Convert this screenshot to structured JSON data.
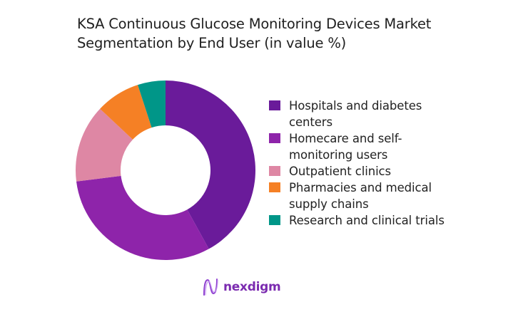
{
  "chart_data": {
    "type": "pie",
    "subtype": "donut",
    "title": "KSA Continuous Glucose Monitoring Devices Market Segmentation by End User (in value %)",
    "title_lines": [
      "KSA Continuous Glucose Monitoring Devices Market",
      "Segmentation by End User (in value %)"
    ],
    "categories": [
      "Hospitals and diabetes centers",
      "Homecare and self-monitoring users",
      "Outpatient clinics",
      "Pharmacies and medical supply chains",
      "Research and clinical trials"
    ],
    "values": [
      42,
      31,
      14,
      8,
      5
    ],
    "colors": [
      "#6a1b9a",
      "#8e24aa",
      "#de87a4",
      "#f58025",
      "#009688"
    ],
    "legend_position": "right",
    "start_angle": "12 o'clock",
    "direction": "clockwise",
    "data_labels": false
  },
  "legend": {
    "items": [
      {
        "label": "Hospitals and diabetes centers",
        "color": "#6a1b9a"
      },
      {
        "label": "Homecare and self-monitoring users",
        "color": "#8e24aa"
      },
      {
        "label": "Outpatient clinics",
        "color": "#de87a4"
      },
      {
        "label": "Pharmacies and medical supply chains",
        "color": "#f58025"
      },
      {
        "label": "Research and clinical trials",
        "color": "#009688"
      }
    ]
  },
  "branding": {
    "logo_text": "nexdigm",
    "logo_icon": "nexdigm-wave-icon",
    "brand_color": "#7b2bb0"
  }
}
